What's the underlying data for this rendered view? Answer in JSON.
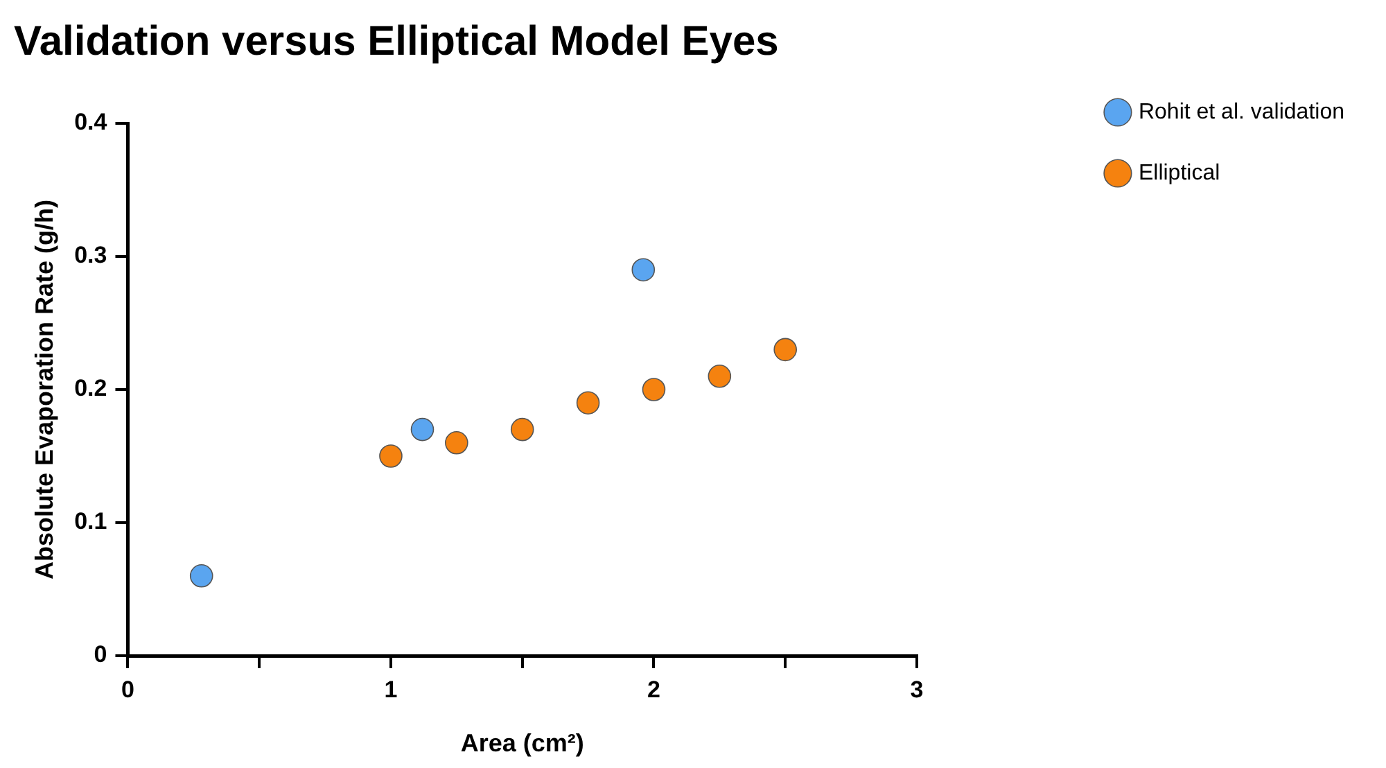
{
  "chart_data": {
    "type": "scatter",
    "title": "Validation versus Elliptical Model Eyes",
    "xlabel": "Area (cm²)",
    "ylabel": "Absolute Evaporation Rate (g/h)",
    "series": [
      {
        "name": "Rohit et al. validation",
        "color": "#5aa5f0",
        "x": [
          0.28,
          1.12,
          1.96
        ],
        "values": [
          0.06,
          0.17,
          0.29
        ]
      },
      {
        "name": "Elliptical",
        "color": "#f5820f",
        "x": [
          1,
          1.25,
          1.5,
          1.75,
          2,
          2.25,
          2.5
        ],
        "values": [
          0.15,
          0.16,
          0.17,
          0.19,
          0.2,
          0.21,
          0.23
        ]
      }
    ],
    "xlim": [
      0,
      3
    ],
    "xticks": [
      0,
      {
        "value": 0.5,
        "label": null
      },
      1,
      {
        "value": 1.5,
        "label": null
      },
      2,
      {
        "value": 2.5,
        "label": null
      },
      3
    ],
    "ylim": [
      0,
      0.4
    ],
    "yticks": [
      0,
      0.1,
      0.2,
      0.3,
      0.4
    ],
    "grid": false,
    "legend": "top right",
    "marker": "circle"
  }
}
